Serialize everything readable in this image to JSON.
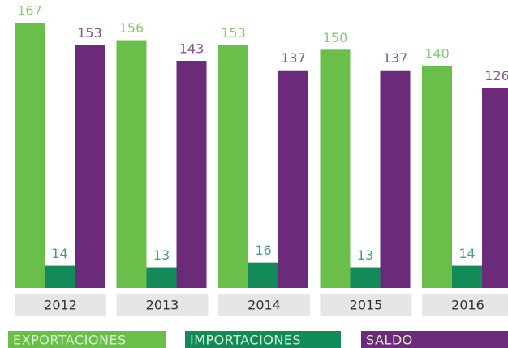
{
  "chart_data": {
    "type": "bar",
    "categories": [
      "2012",
      "2013",
      "2014",
      "2015",
      "2016"
    ],
    "series": [
      {
        "name": "EXPORTACIONES",
        "color": "#6abf4b",
        "values": [
          167,
          156,
          153,
          150,
          140
        ]
      },
      {
        "name": "IMPORTACIONES",
        "color": "#138a5a",
        "values": [
          14,
          13,
          16,
          13,
          14
        ]
      },
      {
        "name": "SALDO",
        "color": "#6b2a7a",
        "values": [
          153,
          143,
          137,
          137,
          126
        ]
      }
    ],
    "legend": "bottom"
  }
}
